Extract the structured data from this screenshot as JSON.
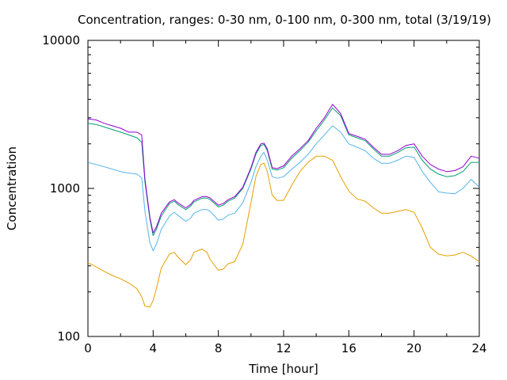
{
  "chart_data": {
    "type": "line",
    "title": "Concentration, ranges: 0-30 nm, 0-100 nm, 0-300 nm, total (3/19/19)",
    "xlabel": "Time [hour]",
    "ylabel": "Concentration",
    "x_range": [
      0,
      24
    ],
    "y_range": [
      100,
      10000
    ],
    "y_scale": "log",
    "x_ticks": [
      0,
      4,
      8,
      12,
      16,
      20,
      24
    ],
    "x_tick_labels": [
      "0",
      "4",
      "8",
      "12",
      "16",
      "20",
      "24"
    ],
    "y_ticks": [
      100,
      1000,
      10000
    ],
    "y_tick_labels": [
      "100",
      "1000",
      "10000"
    ],
    "grid": false,
    "legend": "none",
    "series": [
      {
        "color": "#e69f00",
        "x": [
          0,
          0.5,
          1,
          1.5,
          2,
          2.5,
          3,
          3.3,
          3.5,
          3.8,
          4.0,
          4.2,
          4.5,
          5.0,
          5.3,
          5.5,
          6.0,
          6.3,
          6.5,
          7.0,
          7.3,
          7.5,
          8.0,
          8.3,
          8.6,
          9.0,
          9.5,
          10.0,
          10.3,
          10.6,
          10.8,
          11.0,
          11.3,
          11.6,
          12.0,
          12.5,
          13.0,
          13.5,
          14.0,
          14.5,
          15.0,
          15.5,
          16.0,
          16.5,
          17.0,
          17.5,
          18.0,
          18.5,
          19.0,
          19.5,
          20.0,
          20.5,
          21.0,
          21.5,
          22.0,
          22.5,
          23.0,
          23.5,
          24.0
        ],
        "y": [
          315,
          295,
          275,
          258,
          245,
          230,
          210,
          185,
          160,
          158,
          175,
          210,
          290,
          360,
          370,
          345,
          305,
          330,
          370,
          390,
          370,
          330,
          280,
          285,
          310,
          320,
          420,
          800,
          1200,
          1450,
          1480,
          1300,
          900,
          830,
          830,
          1050,
          1300,
          1500,
          1650,
          1650,
          1550,
          1200,
          960,
          850,
          820,
          740,
          680,
          680,
          700,
          720,
          690,
          540,
          400,
          360,
          350,
          355,
          370,
          350,
          320
        ]
      },
      {
        "color": "#56b4e9",
        "x": [
          0,
          0.5,
          1,
          1.5,
          2,
          2.5,
          3,
          3.3,
          3.5,
          3.8,
          4.0,
          4.2,
          4.5,
          5.0,
          5.3,
          5.5,
          6.0,
          6.3,
          6.5,
          7.0,
          7.3,
          7.5,
          8.0,
          8.3,
          8.6,
          9.0,
          9.5,
          10.0,
          10.3,
          10.6,
          10.8,
          11.0,
          11.3,
          11.6,
          12.0,
          12.5,
          13.0,
          13.5,
          14.0,
          14.5,
          15.0,
          15.5,
          16.0,
          16.5,
          17.0,
          17.5,
          18.0,
          18.5,
          19.0,
          19.5,
          20.0,
          20.5,
          21.0,
          21.5,
          22.0,
          22.5,
          23.0,
          23.5,
          24.0
        ],
        "y": [
          1500,
          1450,
          1400,
          1350,
          1300,
          1270,
          1250,
          1180,
          700,
          430,
          380,
          420,
          530,
          650,
          690,
          660,
          600,
          630,
          680,
          720,
          720,
          700,
          610,
          620,
          660,
          680,
          800,
          1100,
          1400,
          1650,
          1750,
          1550,
          1200,
          1170,
          1200,
          1350,
          1500,
          1700,
          2000,
          2300,
          2650,
          2400,
          2000,
          1900,
          1800,
          1600,
          1480,
          1480,
          1550,
          1650,
          1620,
          1300,
          1100,
          950,
          930,
          920,
          1000,
          1150,
          1020
        ]
      },
      {
        "color": "#009e73",
        "x": [
          0,
          0.5,
          1,
          1.5,
          2,
          2.5,
          3,
          3.3,
          3.5,
          3.8,
          4.0,
          4.2,
          4.5,
          5.0,
          5.3,
          5.5,
          6.0,
          6.3,
          6.5,
          7.0,
          7.3,
          7.5,
          8.0,
          8.3,
          8.6,
          9.0,
          9.5,
          10.0,
          10.3,
          10.6,
          10.8,
          11.0,
          11.3,
          11.6,
          12.0,
          12.5,
          13.0,
          13.5,
          14.0,
          14.5,
          15.0,
          15.5,
          16.0,
          16.5,
          17.0,
          17.5,
          18.0,
          18.5,
          19.0,
          19.5,
          20.0,
          20.5,
          21.0,
          21.5,
          22.0,
          22.5,
          23.0,
          23.5,
          24.0
        ],
        "y": [
          2750,
          2700,
          2600,
          2500,
          2400,
          2300,
          2200,
          2050,
          1100,
          620,
          480,
          530,
          650,
          790,
          820,
          780,
          720,
          760,
          810,
          860,
          860,
          840,
          750,
          770,
          820,
          860,
          1000,
          1350,
          1700,
          1950,
          1980,
          1800,
          1350,
          1330,
          1380,
          1600,
          1800,
          2050,
          2450,
          2900,
          3500,
          3100,
          2300,
          2200,
          2100,
          1850,
          1650,
          1650,
          1750,
          1880,
          1900,
          1550,
          1350,
          1250,
          1200,
          1220,
          1300,
          1500,
          1500
        ]
      },
      {
        "color": "#9400d3",
        "x": [
          0,
          0.5,
          1,
          1.5,
          2,
          2.5,
          3,
          3.3,
          3.5,
          3.8,
          4.0,
          4.2,
          4.5,
          5.0,
          5.3,
          5.5,
          6.0,
          6.3,
          6.5,
          7.0,
          7.3,
          7.5,
          8.0,
          8.3,
          8.6,
          9.0,
          9.5,
          10.0,
          10.3,
          10.6,
          10.8,
          11.0,
          11.3,
          11.6,
          12.0,
          12.5,
          13.0,
          13.5,
          14.0,
          14.5,
          15.0,
          15.5,
          16.0,
          16.5,
          17.0,
          17.5,
          18.0,
          18.5,
          19.0,
          19.5,
          20.0,
          20.5,
          21.0,
          21.5,
          22.0,
          22.5,
          23.0,
          23.5,
          24.0
        ],
        "y": [
          2950,
          2900,
          2750,
          2650,
          2550,
          2400,
          2400,
          2300,
          1150,
          640,
          500,
          550,
          680,
          810,
          840,
          800,
          740,
          780,
          830,
          880,
          880,
          860,
          770,
          790,
          840,
          880,
          1020,
          1380,
          1750,
          2000,
          2020,
          1850,
          1380,
          1360,
          1420,
          1650,
          1850,
          2100,
          2550,
          3000,
          3700,
          3200,
          2350,
          2250,
          2150,
          1900,
          1700,
          1700,
          1800,
          1950,
          2000,
          1650,
          1450,
          1350,
          1300,
          1320,
          1400,
          1650,
          1600
        ]
      }
    ]
  }
}
